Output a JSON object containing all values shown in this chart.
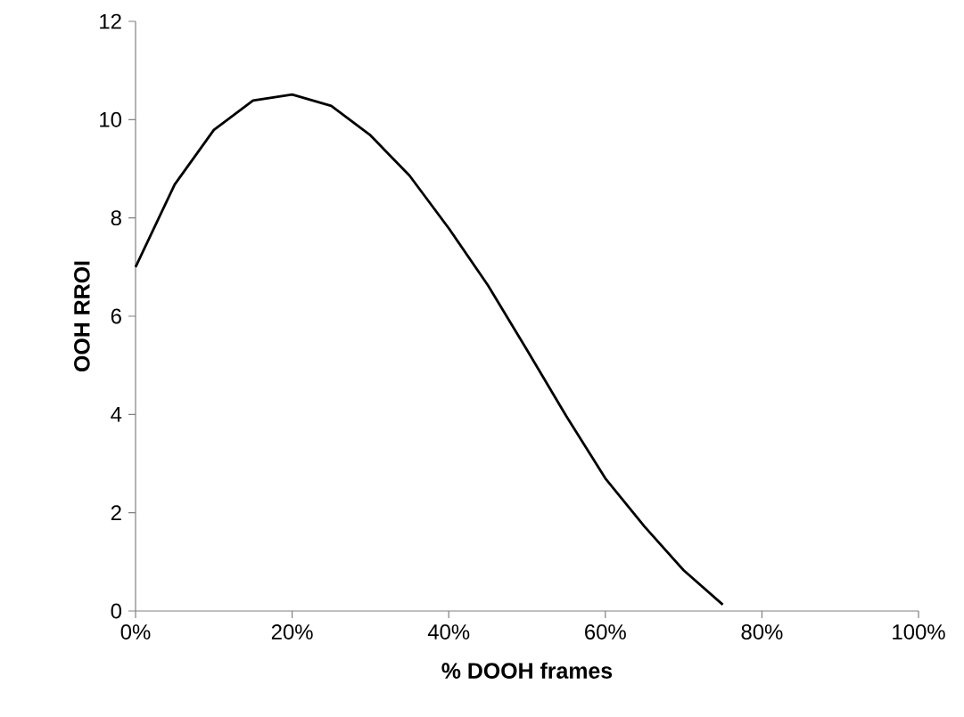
{
  "chart_data": {
    "type": "line",
    "xlabel": "% DOOH frames",
    "ylabel": "OOH RROI",
    "x": [
      0,
      5,
      10,
      15,
      20,
      25,
      30,
      35,
      40,
      45,
      50,
      55,
      60,
      65,
      70,
      75
    ],
    "series": [
      {
        "color": "#000000",
        "values": [
          7.0,
          8.68,
          9.79,
          10.39,
          10.51,
          10.28,
          9.68,
          8.86,
          7.79,
          6.63,
          5.31,
          3.97,
          2.7,
          1.72,
          0.83,
          0.13
        ]
      }
    ],
    "xlim": [
      0,
      100
    ],
    "ylim": [
      0,
      12
    ],
    "xticks": [
      {
        "value": 0,
        "label": "0%"
      },
      {
        "value": 20,
        "label": "20%"
      },
      {
        "value": 40,
        "label": "40%"
      },
      {
        "value": 60,
        "label": "60%"
      },
      {
        "value": 80,
        "label": "80%"
      },
      {
        "value": 100,
        "label": "100%"
      }
    ],
    "yticks": [
      0,
      2,
      4,
      6,
      8,
      10,
      12
    ],
    "grid": false,
    "legend": false,
    "marker": "none",
    "line_style": "solid"
  }
}
